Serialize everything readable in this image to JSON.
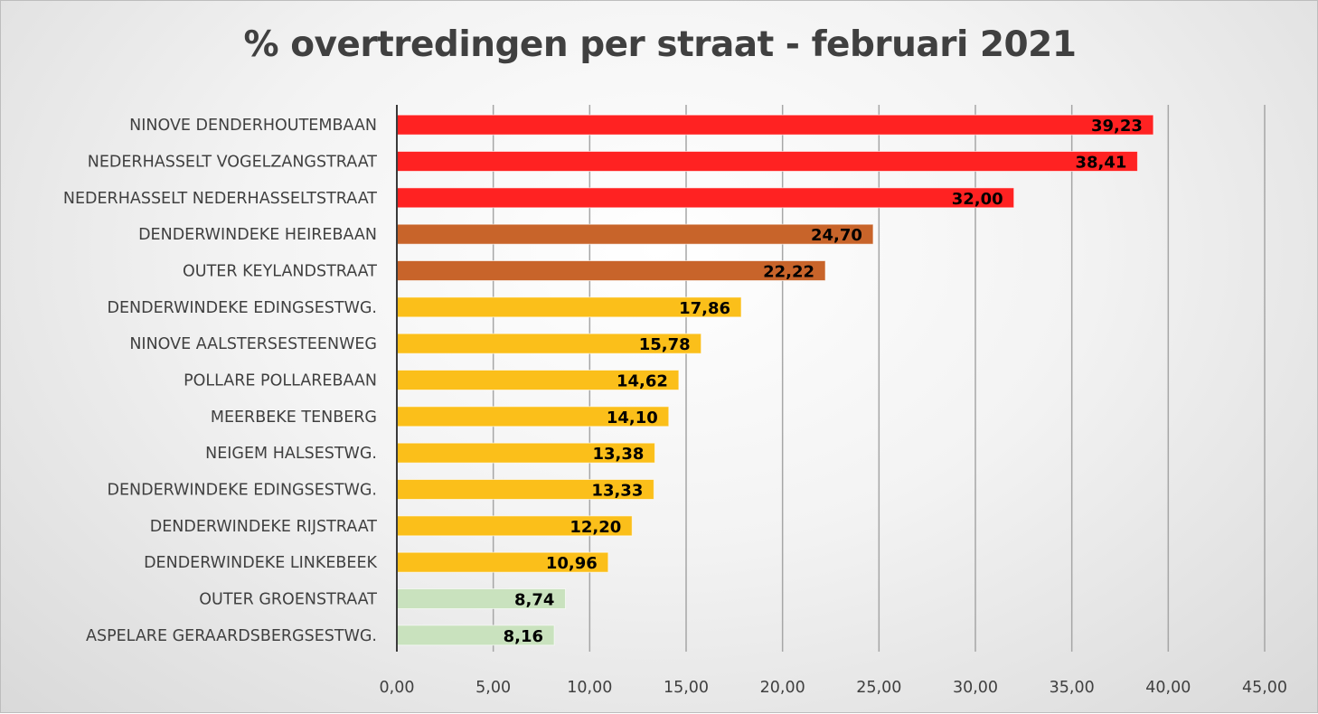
{
  "chart_data": {
    "type": "bar",
    "orientation": "horizontal",
    "title": "% overtredingen per straat - februari 2021",
    "xlabel": "",
    "ylabel": "",
    "xlim": [
      0,
      45
    ],
    "grid": "vertical",
    "legend": "none",
    "ticks": [
      "0,00",
      "5,00",
      "10,00",
      "15,00",
      "20,00",
      "25,00",
      "30,00",
      "35,00",
      "40,00",
      "45,00"
    ],
    "categories": [
      "NINOVE DENDERHOUTEMBAAN",
      "NEDERHASSELT VOGELZANGSTRAAT",
      "NEDERHASSELT NEDERHASSELTSTRAAT",
      "DENDERWINDEKE HEIREBAAN",
      "OUTER KEYLANDSTRAAT",
      "DENDERWINDEKE EDINGSESTWG.",
      "NINOVE AALSTERSESTEENWEG",
      "POLLARE POLLAREBAAN",
      "MEERBEKE TENBERG",
      "NEIGEM HALSESTWG.",
      "DENDERWINDEKE EDINGSESTWG.",
      "DENDERWINDEKE RIJSTRAAT",
      "DENDERWINDEKE LINKEBEEK",
      "OUTER GROENSTRAAT",
      "ASPELARE GERAARDSBERGSESTWG."
    ],
    "values": [
      39.23,
      38.41,
      32.0,
      24.7,
      22.22,
      17.86,
      15.78,
      14.62,
      14.1,
      13.38,
      13.33,
      12.2,
      10.96,
      8.74,
      8.16
    ],
    "value_labels": [
      "39,23",
      "38,41",
      "32,00",
      "24,70",
      "22,22",
      "17,86",
      "15,78",
      "14,62",
      "14,10",
      "13,38",
      "13,33",
      "12,20",
      "10,96",
      "8,74",
      "8,16"
    ],
    "bar_colors": [
      "#ff2222",
      "#ff2222",
      "#ff2222",
      "#c8642a",
      "#c8642a",
      "#fbbf1a",
      "#fbbf1a",
      "#fbbf1a",
      "#fbbf1a",
      "#fbbf1a",
      "#fbbf1a",
      "#fbbf1a",
      "#fbbf1a",
      "#c9e2be",
      "#c9e2be"
    ]
  }
}
